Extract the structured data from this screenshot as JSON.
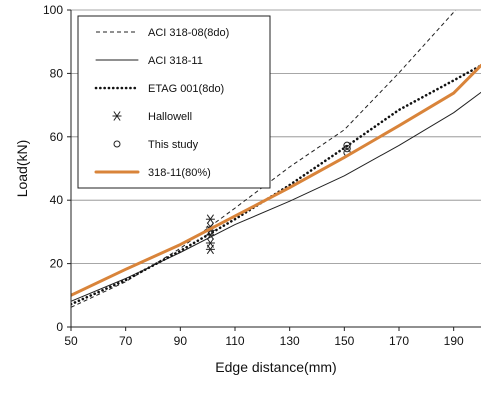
{
  "chart_data": {
    "type": "line",
    "xlabel": "Edge distance(mm)",
    "ylabel": "Load(kN)",
    "xlim": [
      50,
      200
    ],
    "ylim": [
      0,
      100
    ],
    "xticks": [
      50,
      70,
      90,
      110,
      130,
      150,
      170,
      190
    ],
    "yticks": [
      0,
      20,
      40,
      60,
      80,
      100
    ],
    "grid": "horizontal",
    "legend_position": "top-left",
    "series": [
      {
        "name": "ACI 318-08(8do)",
        "style": "dashed",
        "color": "#222222",
        "points": [
          [
            50,
            6.2
          ],
          [
            70,
            14.3
          ],
          [
            90,
            24.8
          ],
          [
            110,
            37.5
          ],
          [
            130,
            50.5
          ],
          [
            150,
            62.2
          ],
          [
            170,
            80.2
          ],
          [
            190,
            99.3
          ],
          [
            192,
            101.4
          ]
        ]
      },
      {
        "name": "ACI 318-11",
        "style": "solid",
        "color": "#222222",
        "points": [
          [
            50,
            8.1
          ],
          [
            70,
            15.3
          ],
          [
            90,
            23.5
          ],
          [
            110,
            32.3
          ],
          [
            130,
            39.7
          ],
          [
            150,
            47.7
          ],
          [
            170,
            57.3
          ],
          [
            190,
            67.6
          ],
          [
            200,
            74.0
          ]
        ]
      },
      {
        "name": "ETAG 001(8do)",
        "style": "dotted",
        "color": "#111111",
        "points": [
          [
            50,
            7.2
          ],
          [
            70,
            14.8
          ],
          [
            90,
            24.0
          ],
          [
            110,
            34.0
          ],
          [
            130,
            44.8
          ],
          [
            150,
            56.5
          ],
          [
            170,
            68.5
          ],
          [
            190,
            77.8
          ],
          [
            200,
            82.5
          ]
        ]
      },
      {
        "name": "Hallowell",
        "style": "marker-asterisk",
        "color": "#222222",
        "points": [
          [
            101,
            24.5
          ],
          [
            101,
            26.5
          ],
          [
            101,
            29.0
          ],
          [
            101,
            30.5
          ],
          [
            101,
            31.5
          ],
          [
            101,
            34.0
          ]
        ]
      },
      {
        "name": "This study",
        "style": "marker-circle",
        "color": "#222222",
        "points": [
          [
            151,
            55.0
          ],
          [
            151,
            56.3
          ],
          [
            151,
            57.3
          ]
        ]
      },
      {
        "name": "318-11(80%)",
        "style": "solid-thick",
        "color": "#d9843a",
        "points": [
          [
            50,
            10.0
          ],
          [
            70,
            18.2
          ],
          [
            90,
            26.0
          ],
          [
            110,
            35.0
          ],
          [
            130,
            44.0
          ],
          [
            150,
            53.5
          ],
          [
            170,
            63.5
          ],
          [
            190,
            73.8
          ],
          [
            200,
            82.5
          ]
        ]
      }
    ]
  }
}
